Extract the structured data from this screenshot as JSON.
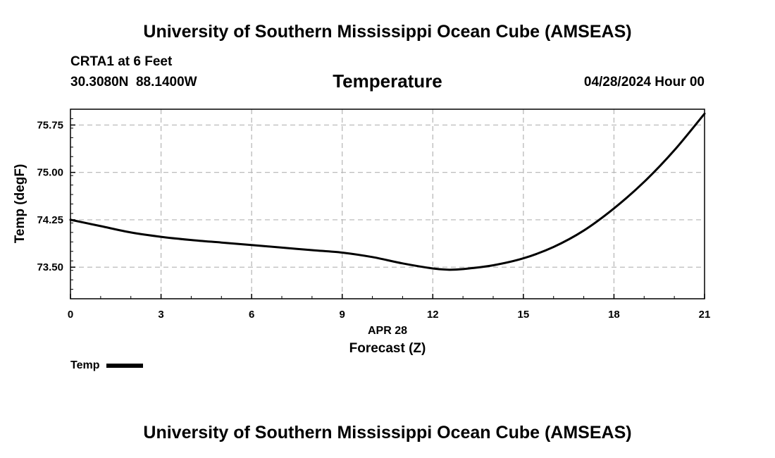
{
  "header": {
    "title": "University of Southern Mississippi Ocean Cube (AMSEAS)",
    "station": "CRTA1 at 6 Feet",
    "coords": "30.3080N  88.1400W",
    "variable": "Temperature",
    "run_time": "04/28/2024 Hour 00"
  },
  "footer": {
    "title": "University of Southern Mississippi Ocean Cube (AMSEAS)"
  },
  "chart_data": {
    "type": "line",
    "title": "Temperature",
    "xlabel": "Forecast (Z)",
    "date_label": "APR 28",
    "ylabel": "Temp (degF)",
    "xlim": [
      0,
      21
    ],
    "ylim": [
      73.0,
      76.0
    ],
    "x_ticks": [
      0,
      3,
      6,
      9,
      12,
      15,
      18,
      21
    ],
    "y_ticks": [
      73.5,
      74.25,
      75.0,
      75.75
    ],
    "y_tick_labels": [
      "73.50",
      "74.25",
      "75.00",
      "75.75"
    ],
    "grid": true,
    "legend_position": "bottom-left",
    "series": [
      {
        "name": "Temp",
        "color": "#000000",
        "x": [
          0,
          1,
          2,
          3,
          4,
          5,
          6,
          7,
          8,
          9,
          10,
          11,
          12,
          12.5,
          13,
          14,
          15,
          16,
          17,
          18,
          19,
          20,
          21
        ],
        "y": [
          74.25,
          74.15,
          74.05,
          73.98,
          73.93,
          73.89,
          73.85,
          73.81,
          73.77,
          73.73,
          73.66,
          73.56,
          73.48,
          73.46,
          73.47,
          73.53,
          73.64,
          73.82,
          74.08,
          74.43,
          74.85,
          75.35,
          75.93
        ]
      }
    ]
  }
}
